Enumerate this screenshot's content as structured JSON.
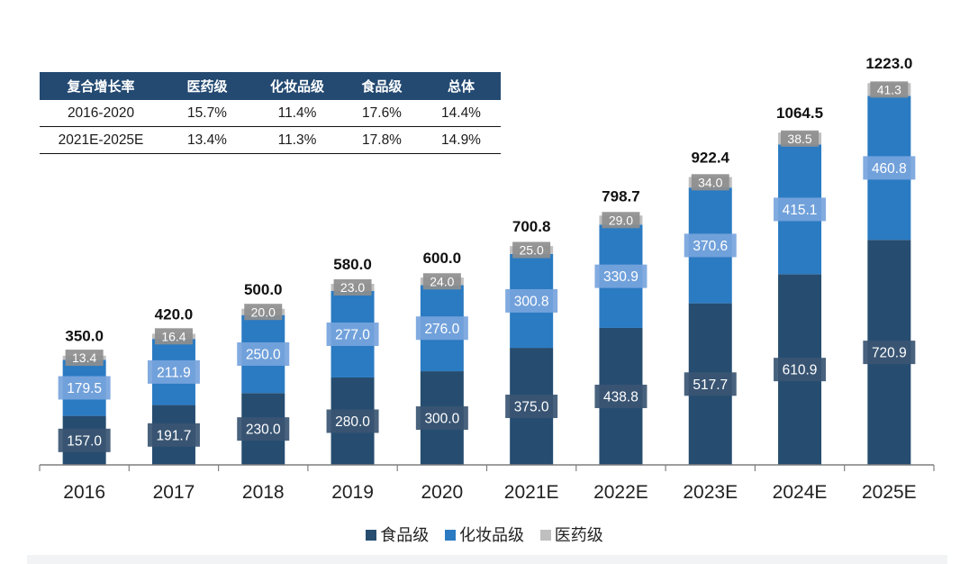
{
  "table": {
    "headers": [
      "复合增长率",
      "医药级",
      "化妆品级",
      "食品级",
      "总体"
    ],
    "rows": [
      [
        "2016-2020",
        "15.7%",
        "11.4%",
        "17.6%",
        "14.4%"
      ],
      [
        "2021E-2025E",
        "13.4%",
        "11.3%",
        "17.8%",
        "14.9%"
      ]
    ]
  },
  "colors": {
    "food": "#264d70",
    "cosmetic": "#2b7bc2",
    "pharma": "#bfbfbf",
    "food_label_bg": "#3a5572",
    "cosmetic_label_bg": "#77a4dd",
    "pharma_label_bg": "#8e8e8e",
    "axis": "#7f7f7f"
  },
  "chart_data": {
    "type": "bar",
    "stacked": true,
    "categories": [
      "2016",
      "2017",
      "2018",
      "2019",
      "2020",
      "2021E",
      "2022E",
      "2023E",
      "2024E",
      "2025E"
    ],
    "series": [
      {
        "name": "食品级",
        "key": "food",
        "values": [
          157.0,
          191.7,
          230.0,
          280.0,
          300.0,
          375.0,
          438.8,
          517.7,
          610.9,
          720.9
        ],
        "labels": [
          "157.0",
          "191.7",
          "230.0",
          "280.0",
          "300.0",
          "375.0",
          "438.8",
          "517.7",
          "610.9",
          "720.9"
        ]
      },
      {
        "name": "化妆品级",
        "key": "cosmetic",
        "values": [
          179.5,
          211.9,
          250.0,
          277.0,
          276.0,
          300.8,
          330.9,
          370.6,
          415.1,
          460.8
        ],
        "labels": [
          "179.5",
          "211.9",
          "250.0",
          "277.0",
          "276.0",
          "300.8",
          "330.9",
          "370.6",
          "415.1",
          "460.8"
        ]
      },
      {
        "name": "医药级",
        "key": "pharma",
        "values": [
          13.4,
          16.4,
          20.0,
          23.0,
          24.0,
          25.0,
          29.0,
          34.0,
          38.5,
          41.3
        ],
        "labels": [
          "13.4",
          "16.4",
          "20.0",
          "23.0",
          "24.0",
          "25.0",
          "29.0",
          "34.0",
          "38.5",
          "41.3"
        ]
      }
    ],
    "totals": [
      350.0,
      420.0,
      500.0,
      580.0,
      600.0,
      700.8,
      798.7,
      922.4,
      1064.5,
      1223.0
    ],
    "total_labels": [
      "350.0",
      "420.0",
      "500.0",
      "580.0",
      "600.0",
      "700.8",
      "798.7",
      "922.4",
      "1064.5",
      "1223.0"
    ],
    "ylim": [
      0,
      1300
    ],
    "legend": [
      "食品级",
      "化妆品级",
      "医药级"
    ],
    "legend_position": "bottom",
    "title": "",
    "xlabel": "",
    "ylabel": ""
  }
}
